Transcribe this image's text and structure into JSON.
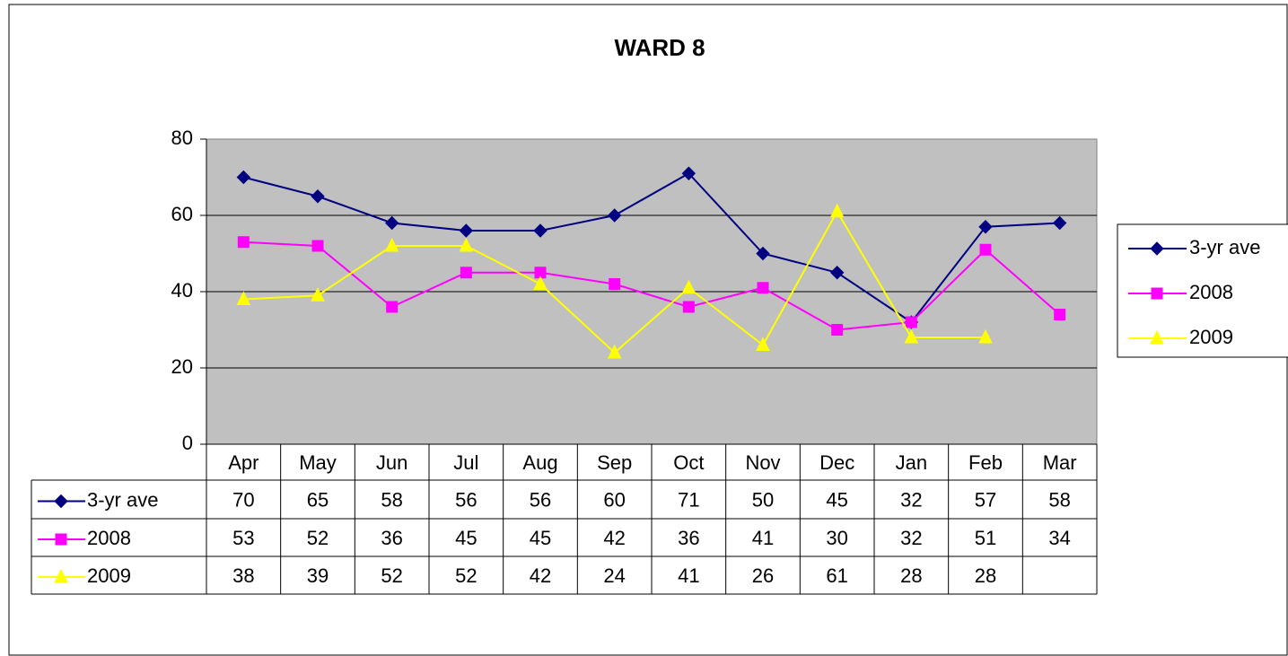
{
  "chart_data": {
    "type": "line",
    "title": "WARD 8",
    "categories": [
      "Apr",
      "May",
      "Jun",
      "Jul",
      "Aug",
      "Sep",
      "Oct",
      "Nov",
      "Dec",
      "Jan",
      "Feb",
      "Mar"
    ],
    "series": [
      {
        "name": "3-yr ave",
        "color": "#000080",
        "marker": "diamond",
        "values": [
          70,
          65,
          58,
          56,
          56,
          60,
          71,
          50,
          45,
          32,
          57,
          58
        ]
      },
      {
        "name": "2008",
        "color": "#ff00ff",
        "marker": "square",
        "values": [
          53,
          52,
          36,
          45,
          45,
          42,
          36,
          41,
          30,
          32,
          51,
          34
        ]
      },
      {
        "name": "2009",
        "color": "#ffff00",
        "marker": "triangle",
        "values": [
          38,
          39,
          52,
          52,
          42,
          24,
          41,
          26,
          61,
          28,
          28,
          null
        ]
      }
    ],
    "ylim": [
      0,
      80
    ],
    "yticks": [
      0,
      20,
      40,
      60,
      80
    ],
    "grid": true,
    "plot_background": "#c0c0c0",
    "legend": "right"
  }
}
